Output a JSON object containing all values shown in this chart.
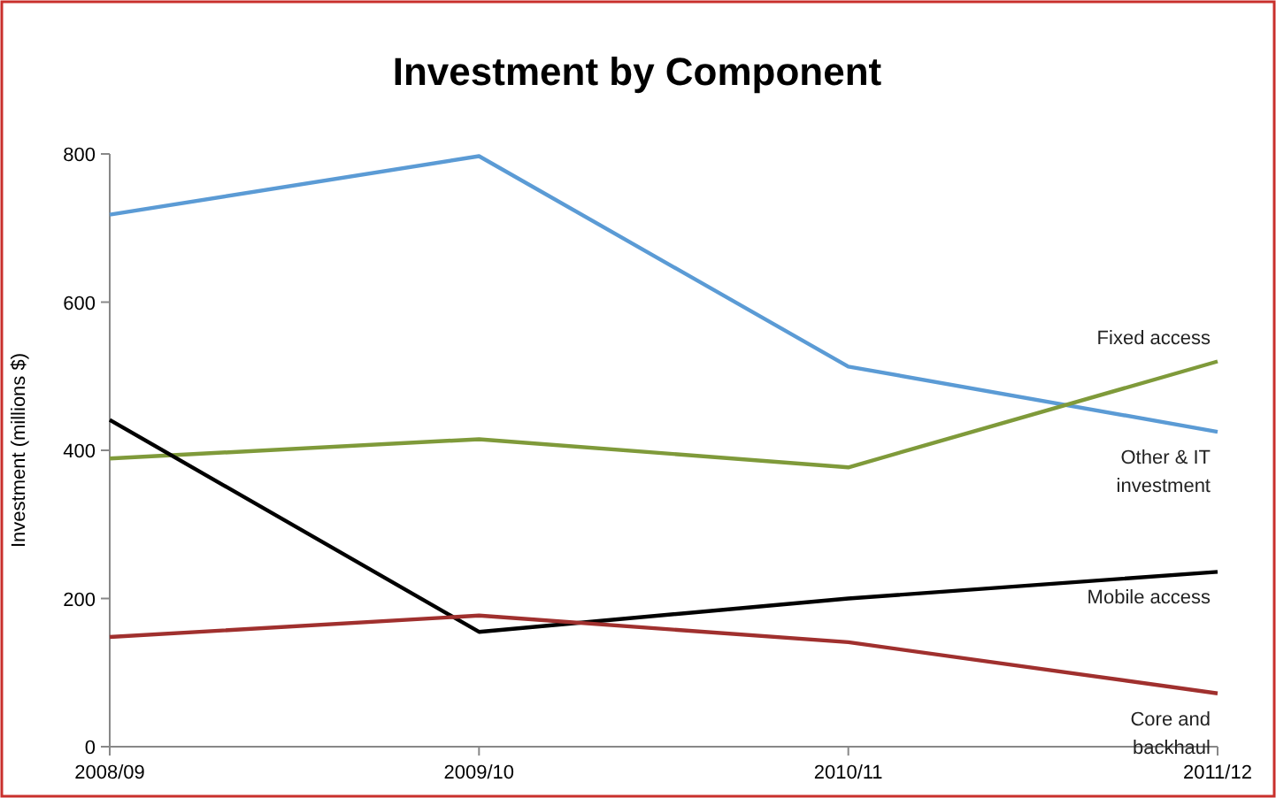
{
  "chart_data": {
    "type": "line",
    "title": "Investment by Component",
    "ylabel": "Investment (millions $)",
    "categories": [
      "2008/09",
      "2009/10",
      "2010/11",
      "2011/12"
    ],
    "ylim": [
      0,
      800
    ],
    "yticks": [
      0,
      200,
      400,
      600,
      800
    ],
    "grid": false,
    "marker": "none",
    "line_style": "solid",
    "series": [
      {
        "name": "Other & IT investment",
        "color": "#5b9bd5",
        "values": [
          718,
          797,
          513,
          425
        ]
      },
      {
        "name": "Fixed access",
        "color": "#7f9a3a",
        "values": [
          389,
          415,
          377,
          520
        ]
      },
      {
        "name": "Mobile access",
        "color": "#000000",
        "values": [
          441,
          155,
          200,
          236
        ]
      },
      {
        "name": "Core and backhaul",
        "color": "#a0302e",
        "values": [
          148,
          177,
          141,
          72
        ]
      }
    ]
  }
}
